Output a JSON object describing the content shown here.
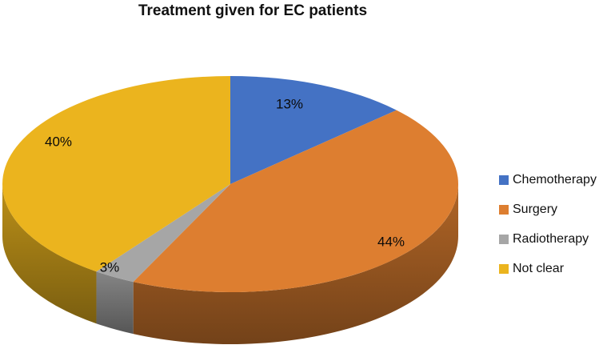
{
  "chart_data": {
    "type": "pie",
    "style": "3d",
    "title": "Treatment given for EC patients",
    "direction": "clockwise",
    "start_angle_deg": 0,
    "legend_position": "right",
    "data_labels_shown": true,
    "total": 100,
    "slices": [
      {
        "label": "Chemotherapy",
        "value": 13,
        "label_text": "13%",
        "color": "#4472C4"
      },
      {
        "label": "Surgery",
        "value": 44,
        "label_text": "44%",
        "color": "#DD7E30"
      },
      {
        "label": "Radiotherapy",
        "value": 3,
        "label_text": "3%",
        "color": "#A6A6A6"
      },
      {
        "label": "Not clear",
        "value": 40,
        "label_text": "40%",
        "color": "#EBB41E"
      }
    ]
  }
}
